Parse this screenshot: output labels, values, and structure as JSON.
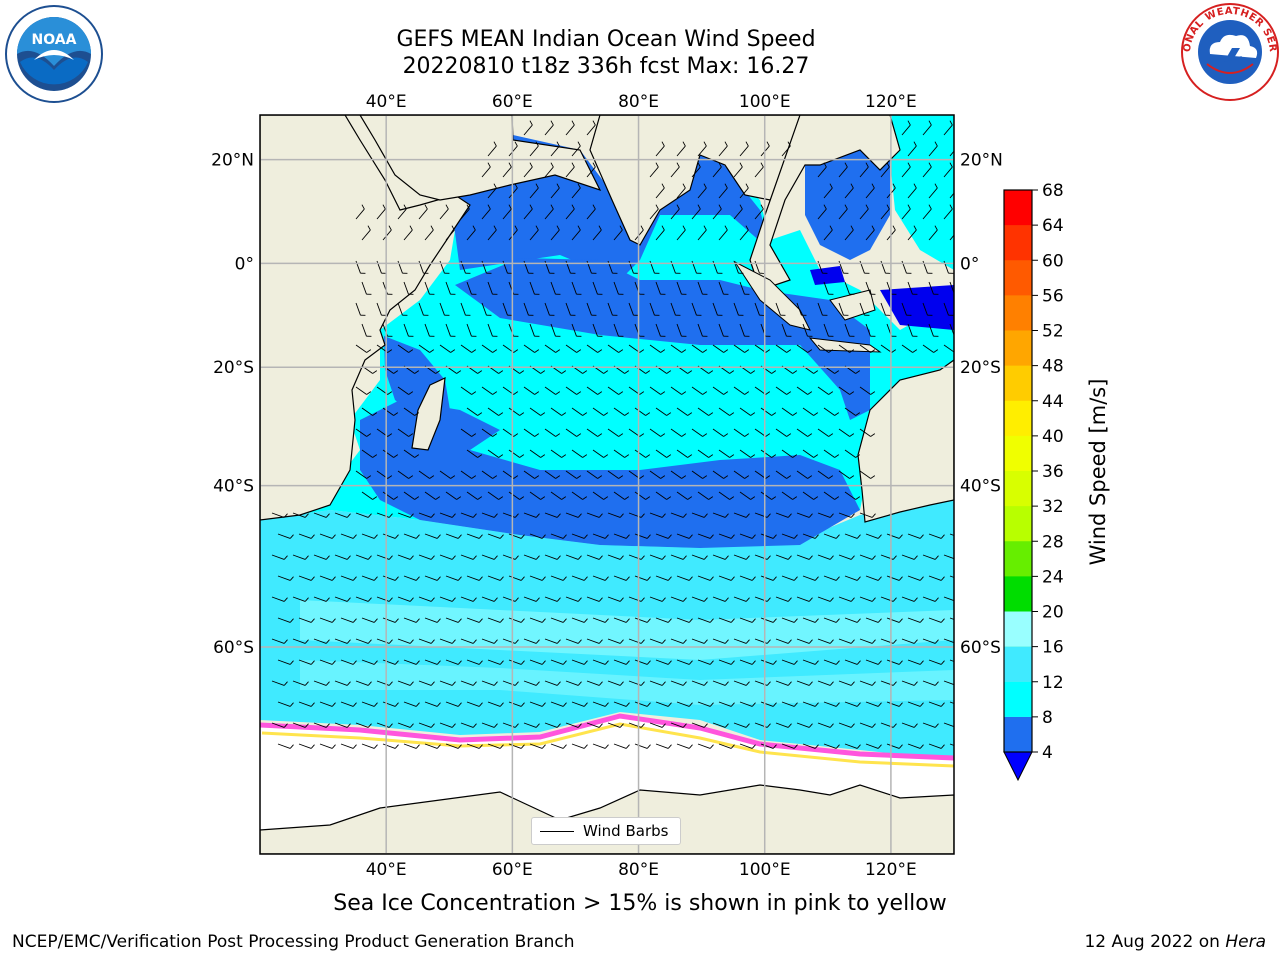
{
  "header": {
    "title_line1": "GEFS MEAN Indian Ocean Wind Speed",
    "title_line2": "20220810 t18z 336h fcst   Max: 16.27"
  },
  "logos": {
    "left": {
      "icon": "noaa-logo-icon",
      "text": "NOAA"
    },
    "right": {
      "icon": "nws-logo-icon",
      "text": "NATIONAL WEATHER SERVICE"
    }
  },
  "map": {
    "lon_labels": [
      "40°E",
      "60°E",
      "80°E",
      "100°E",
      "120°E"
    ],
    "lat_labels": [
      "20°N",
      "0°",
      "20°S",
      "40°S",
      "60°S"
    ],
    "lon_values": [
      40,
      60,
      80,
      100,
      120
    ],
    "lat_values": [
      20,
      0,
      -20,
      -40,
      -60
    ],
    "extent": {
      "lon_min": 20,
      "lon_max": 130,
      "lat_min": -75,
      "lat_max": 28
    },
    "colors": {
      "land": "#efeedd",
      "sea_ice": "#ffffff",
      "band_4_8": "#1f6fef",
      "band_8_12": "#00ffff",
      "band_12_16": "#40eaff",
      "band_16_20": "#99ffff",
      "ice_edge_pink": "#ff55dd",
      "ice_edge_yellow": "#ffe44d"
    },
    "barb_label": "Wind Barbs"
  },
  "colorbar": {
    "title": "Wind Speed [m/s]",
    "labels": [
      "68",
      "64",
      "60",
      "56",
      "52",
      "48",
      "44",
      "40",
      "36",
      "32",
      "28",
      "24",
      "20",
      "16",
      "12",
      "8",
      "4"
    ],
    "colors": [
      "#ff0000",
      "#ff3300",
      "#ff5a00",
      "#ff8000",
      "#ffa600",
      "#ffcc00",
      "#ffee00",
      "#f0ff00",
      "#d8ff00",
      "#b8ff00",
      "#66ee00",
      "#00dd00",
      "#22ee55",
      "#55ff88",
      "#99ffff",
      "#40eaff",
      "#00ffff",
      "#1f6fef"
    ],
    "under_color": "#0000ff"
  },
  "footer": {
    "sea_ice_note": "Sea Ice Concentration > 15% is shown in pink to yellow",
    "left": "NCEP/EMC/Verification Post Processing Product Generation Branch",
    "right_prefix": "12 Aug 2022 on ",
    "right_host": "Hera"
  }
}
